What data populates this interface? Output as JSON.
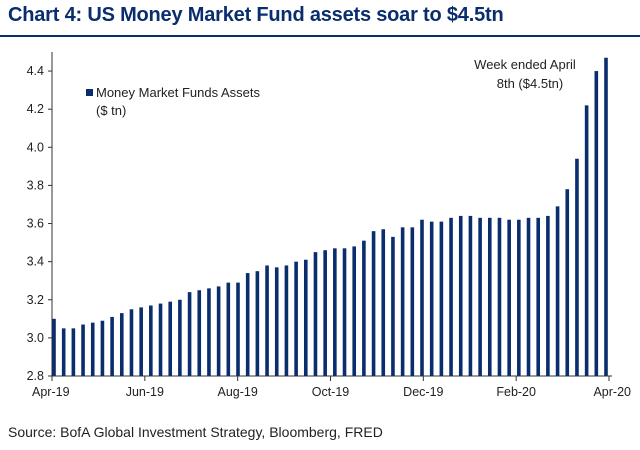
{
  "chart_data": {
    "type": "bar",
    "title": "Chart 4: US Money Market Fund assets soar to $4.5tn",
    "source": "Source: BofA Global Investment Strategy, Bloomberg, FRED",
    "ylim": [
      2.8,
      4.5
    ],
    "yticks": [
      "2.8",
      "3.0",
      "3.2",
      "3.4",
      "3.6",
      "3.8",
      "4.0",
      "4.2",
      "4.4"
    ],
    "xticks": [
      "Apr-19",
      "Jun-19",
      "Aug-19",
      "Oct-19",
      "Dec-19",
      "Feb-20",
      "Apr-20"
    ],
    "legend": {
      "label": "Money Market Funds Assets",
      "unit": "($ tn)",
      "position": "top-left"
    },
    "annotation": {
      "line1": "Week ended April",
      "line2": "8th ($4.5tn)"
    },
    "grid": false,
    "series": [
      {
        "name": "Money Market Funds Assets",
        "color": "#0a2d6e",
        "values": [
          3.1,
          3.05,
          3.05,
          3.07,
          3.08,
          3.09,
          3.11,
          3.13,
          3.15,
          3.16,
          3.17,
          3.18,
          3.19,
          3.2,
          3.24,
          3.25,
          3.26,
          3.27,
          3.29,
          3.29,
          3.34,
          3.35,
          3.38,
          3.37,
          3.38,
          3.4,
          3.41,
          3.45,
          3.46,
          3.47,
          3.47,
          3.48,
          3.51,
          3.56,
          3.57,
          3.53,
          3.58,
          3.58,
          3.62,
          3.61,
          3.61,
          3.63,
          3.64,
          3.64,
          3.63,
          3.63,
          3.63,
          3.62,
          3.62,
          3.63,
          3.63,
          3.64,
          3.69,
          3.78,
          3.94,
          4.22,
          4.4,
          4.47
        ]
      }
    ]
  }
}
